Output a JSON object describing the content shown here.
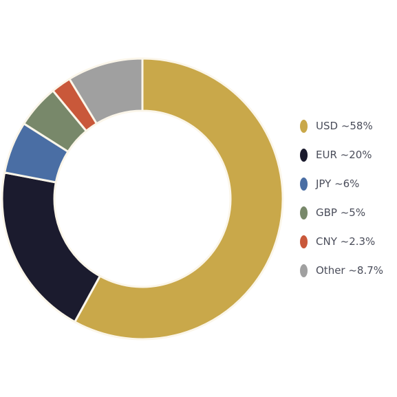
{
  "chart_data": {
    "type": "pie",
    "variant": "donut",
    "title": "",
    "legend_position": "right",
    "slice_border_color": "#fbf6ea",
    "slices": [
      {
        "label": "USD ~58%",
        "value": 58,
        "color": "#c9a84a"
      },
      {
        "label": "EUR ~20%",
        "value": 20,
        "color": "#1b1b2e"
      },
      {
        "label": "JPY ~6%",
        "value": 6,
        "color": "#4a6ea4"
      },
      {
        "label": "GBP ~5%",
        "value": 5,
        "color": "#78886a"
      },
      {
        "label": "CNY ~2.3%",
        "value": 2.3,
        "color": "#c9583a"
      },
      {
        "label": "Other ~8.7%",
        "value": 8.7,
        "color": "#a0a0a0"
      }
    ]
  }
}
